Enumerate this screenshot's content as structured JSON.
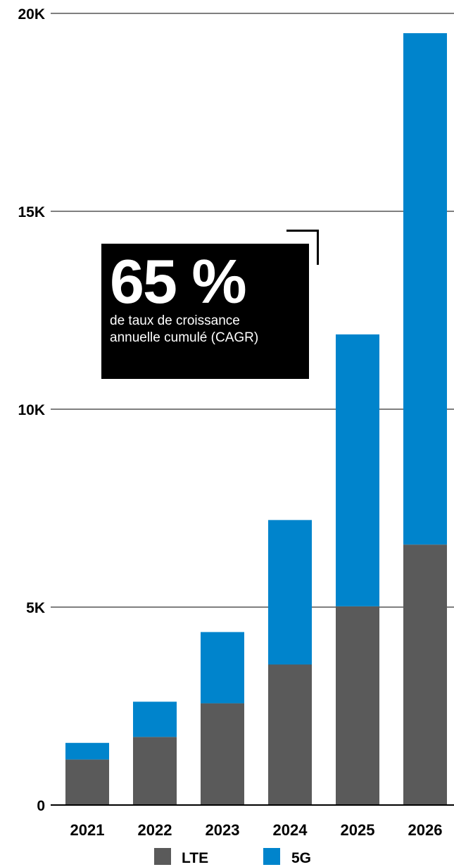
{
  "chart_data": {
    "type": "bar",
    "stacked": true,
    "categories": [
      "2021",
      "2022",
      "2023",
      "2024",
      "2025",
      "2026"
    ],
    "series": [
      {
        "name": "LTE",
        "color": "#5a5a5a",
        "values": [
          1150,
          1720,
          2570,
          3550,
          5020,
          6580
        ]
      },
      {
        "name": "5G",
        "color": "#0084cc",
        "values": [
          420,
          890,
          1800,
          3650,
          6870,
          12920
        ]
      }
    ],
    "ylim": [
      0,
      20000
    ],
    "yticks": [
      0,
      5000,
      10000,
      15000,
      20000
    ],
    "ytick_labels": [
      "0",
      "5K",
      "10K",
      "15K",
      "20K"
    ],
    "grid": true,
    "legend": "bottom",
    "title": "",
    "xlabel": "",
    "ylabel": ""
  },
  "callout": {
    "value": "65 %",
    "line1": "de taux de croissance",
    "line2": "annuelle cumulé (CAGR)"
  }
}
